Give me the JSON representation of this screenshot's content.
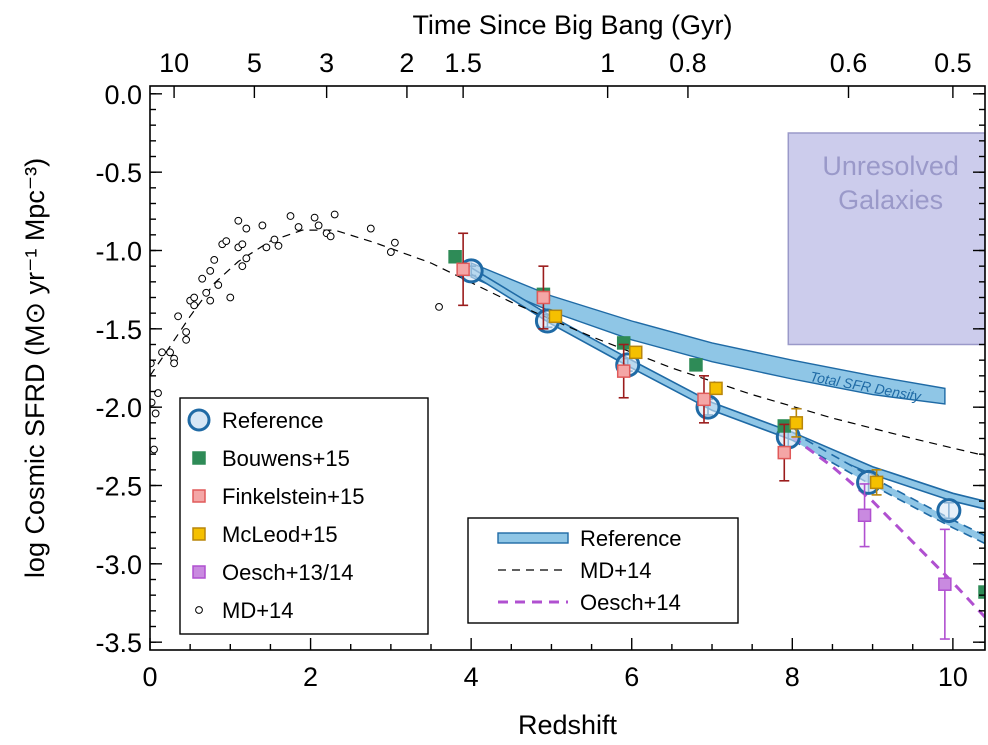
{
  "chart_data": {
    "type": "scatter",
    "xlabel": "Redshift",
    "ylabel": "log Cosmic SFRD (M⊙ yr⁻¹ Mpc⁻³)",
    "top_xlabel": "Time Since Big Bang (Gyr)",
    "xlim": [
      0,
      10.4
    ],
    "ylim": [
      -3.55,
      0.05
    ],
    "x_ticks": [
      0,
      2,
      4,
      6,
      8,
      10
    ],
    "x_tick_labels": [
      "0",
      "2",
      "4",
      "6",
      "8",
      "10"
    ],
    "y_ticks": [
      0.0,
      -0.5,
      -1.0,
      -1.5,
      -2.0,
      -2.5,
      -3.0,
      -3.5
    ],
    "y_tick_labels": [
      "0.0",
      "-0.5",
      "-1.0",
      "-1.5",
      "-2.0",
      "-2.5",
      "-3.0",
      "-3.5"
    ],
    "top_ticks": [
      {
        "label": "10",
        "z": 0.3
      },
      {
        "label": "5",
        "z": 1.3
      },
      {
        "label": "3",
        "z": 2.2
      },
      {
        "label": "2",
        "z": 3.2
      },
      {
        "label": "1.5",
        "z": 3.9
      },
      {
        "label": "1",
        "z": 5.7
      },
      {
        "label": "0.8",
        "z": 6.7
      },
      {
        "label": "0.6",
        "z": 8.7
      },
      {
        "label": "0.5",
        "z": 10.0
      }
    ],
    "shaded_region": {
      "label": "Unresolved Galaxies",
      "x": [
        7.95,
        10.4
      ],
      "y": [
        -1.6,
        -0.25
      ],
      "color": "#ccccec",
      "edge": "#9a99c9",
      "text_color": "#9a99c9"
    },
    "total_band": {
      "label": "Total SFR Density",
      "x": [
        4.0,
        5.0,
        6.0,
        7.0,
        8.0,
        9.0,
        9.9
      ],
      "upper": [
        -1.08,
        -1.29,
        -1.45,
        -1.59,
        -1.7,
        -1.8,
        -1.88
      ],
      "lower": [
        -1.17,
        -1.39,
        -1.57,
        -1.71,
        -1.82,
        -1.92,
        -1.98
      ],
      "fill": "#8fc6e6",
      "edge": "#1f6aa5"
    },
    "series": [
      {
        "name": "Reference",
        "marker": "circle",
        "color": "#1f6aa5",
        "fill": "#d6e6f5",
        "x": [
          4.0,
          4.95,
          5.95,
          6.95,
          7.95,
          8.95,
          9.95
        ],
        "y": [
          -1.13,
          -1.45,
          -1.73,
          -2.0,
          -2.19,
          -2.48,
          -2.66
        ],
        "yerr": [
          0.03,
          0.04,
          0.04,
          0.05,
          0.06,
          0.07,
          0.05
        ]
      },
      {
        "name": "Bouwens+15",
        "marker": "square",
        "color": "#2e8b57",
        "fill": "#2e8b57",
        "x": [
          3.8,
          4.9,
          5.9,
          6.8,
          7.9,
          10.4
        ],
        "y": [
          -1.04,
          -1.28,
          -1.59,
          -1.73,
          -2.12,
          -3.18
        ],
        "yerr": [
          0.0,
          0.0,
          0.0,
          0.0,
          0.0,
          0.38
        ]
      },
      {
        "name": "Finkelstein+15",
        "marker": "square",
        "color": "#e05a5a",
        "fill": "#f4a6a6",
        "ecolor": "#9b1c1c",
        "x": [
          3.9,
          4.9,
          5.9,
          6.9,
          7.9
        ],
        "y": [
          -1.12,
          -1.3,
          -1.77,
          -1.95,
          -2.29
        ],
        "yerr": [
          0.23,
          0.2,
          0.17,
          0.15,
          0.18
        ]
      },
      {
        "name": "McLeod+15",
        "marker": "square",
        "color": "#b8860b",
        "fill": "#f5c000",
        "x": [
          5.05,
          6.05,
          7.05,
          8.05,
          9.05
        ],
        "y": [
          -1.42,
          -1.65,
          -1.88,
          -2.1,
          -2.48
        ],
        "yerr": [
          0.0,
          0.0,
          0.0,
          0.09,
          0.08
        ]
      },
      {
        "name": "Oesch+13/14",
        "marker": "square",
        "color": "#b050d0",
        "fill": "#c98ae0",
        "x": [
          8.9,
          9.9
        ],
        "y": [
          -2.69,
          -3.13
        ],
        "yerr": [
          0.2,
          0.35
        ]
      },
      {
        "name": "MD+14",
        "marker": "small-circle",
        "color": "#000000",
        "x": [
          0.01,
          0.02,
          0.05,
          0.07,
          0.1,
          0.15,
          0.25,
          0.3,
          0.3,
          0.35,
          0.45,
          0.45,
          0.5,
          0.55,
          0.55,
          0.65,
          0.7,
          0.75,
          0.75,
          0.8,
          0.85,
          0.9,
          0.95,
          1.0,
          1.1,
          1.1,
          1.15,
          1.15,
          1.2,
          1.2,
          1.4,
          1.45,
          1.55,
          1.6,
          1.75,
          1.85,
          2.05,
          2.1,
          2.2,
          2.25,
          2.3,
          2.75,
          3.0,
          3.05,
          3.6
        ],
        "y": [
          -1.72,
          -1.97,
          -2.27,
          -2.04,
          -1.91,
          -1.65,
          -1.65,
          -1.69,
          -1.72,
          -1.42,
          -1.52,
          -1.57,
          -1.32,
          -1.35,
          -1.3,
          -1.18,
          -1.27,
          -1.32,
          -1.13,
          -1.06,
          -1.22,
          -0.96,
          -0.94,
          -1.3,
          -0.98,
          -0.81,
          -1.1,
          -0.96,
          -0.86,
          -1.05,
          -0.84,
          -0.98,
          -0.93,
          -0.97,
          -0.78,
          -0.85,
          -0.79,
          -0.84,
          -0.89,
          -0.91,
          -0.77,
          -0.86,
          -1.01,
          -0.95,
          -1.36
        ]
      }
    ],
    "lines": [
      {
        "name": "Reference",
        "style": "band",
        "color": "#1f6aa5",
        "fill": "#8fc6e6",
        "x": [
          4.0,
          5.0,
          6.0,
          7.0,
          8.0,
          9.0,
          10.0,
          10.4
        ],
        "upper": [
          -1.11,
          -1.42,
          -1.7,
          -1.97,
          -2.16,
          -2.38,
          -2.55,
          -2.6
        ],
        "lower": [
          -1.15,
          -1.47,
          -1.75,
          -2.02,
          -2.21,
          -2.43,
          -2.6,
          -2.65
        ]
      },
      {
        "name": "Reference-extrap",
        "style": "band-dashed",
        "color": "#1f6aa5",
        "fill": "#8fc6e6",
        "x": [
          8.0,
          9.0,
          10.0,
          10.4
        ],
        "upper": [
          -2.16,
          -2.45,
          -2.72,
          -2.82
        ],
        "lower": [
          -2.21,
          -2.5,
          -2.77,
          -2.87
        ]
      },
      {
        "name": "MD+14",
        "style": "dashed",
        "color": "#000000",
        "x": [
          0.0,
          0.2,
          0.5,
          0.8,
          1.1,
          1.5,
          1.9,
          2.3,
          2.8,
          3.5,
          4.5,
          5.5,
          6.5,
          7.5,
          8.5,
          9.5,
          10.4
        ],
        "y": [
          -1.8,
          -1.65,
          -1.42,
          -1.21,
          -1.07,
          -0.94,
          -0.87,
          -0.87,
          -0.95,
          -1.08,
          -1.33,
          -1.55,
          -1.75,
          -1.92,
          -2.07,
          -2.2,
          -2.31
        ]
      },
      {
        "name": "Oesch+14",
        "style": "dashed",
        "color": "#b050d0",
        "x": [
          8.0,
          8.5,
          9.0,
          9.5,
          10.0,
          10.4
        ],
        "y": [
          -2.19,
          -2.38,
          -2.6,
          -2.86,
          -3.12,
          -3.34
        ]
      }
    ],
    "legend_markers": {
      "placement": "lower-left",
      "entries": [
        "Reference",
        "Bouwens+15",
        "Finkelstein+15",
        "McLeod+15",
        "Oesch+13/14",
        "MD+14"
      ]
    },
    "legend_lines": {
      "placement": "lower-center",
      "entries": [
        "Reference",
        "MD+14",
        "Oesch+14"
      ]
    }
  }
}
